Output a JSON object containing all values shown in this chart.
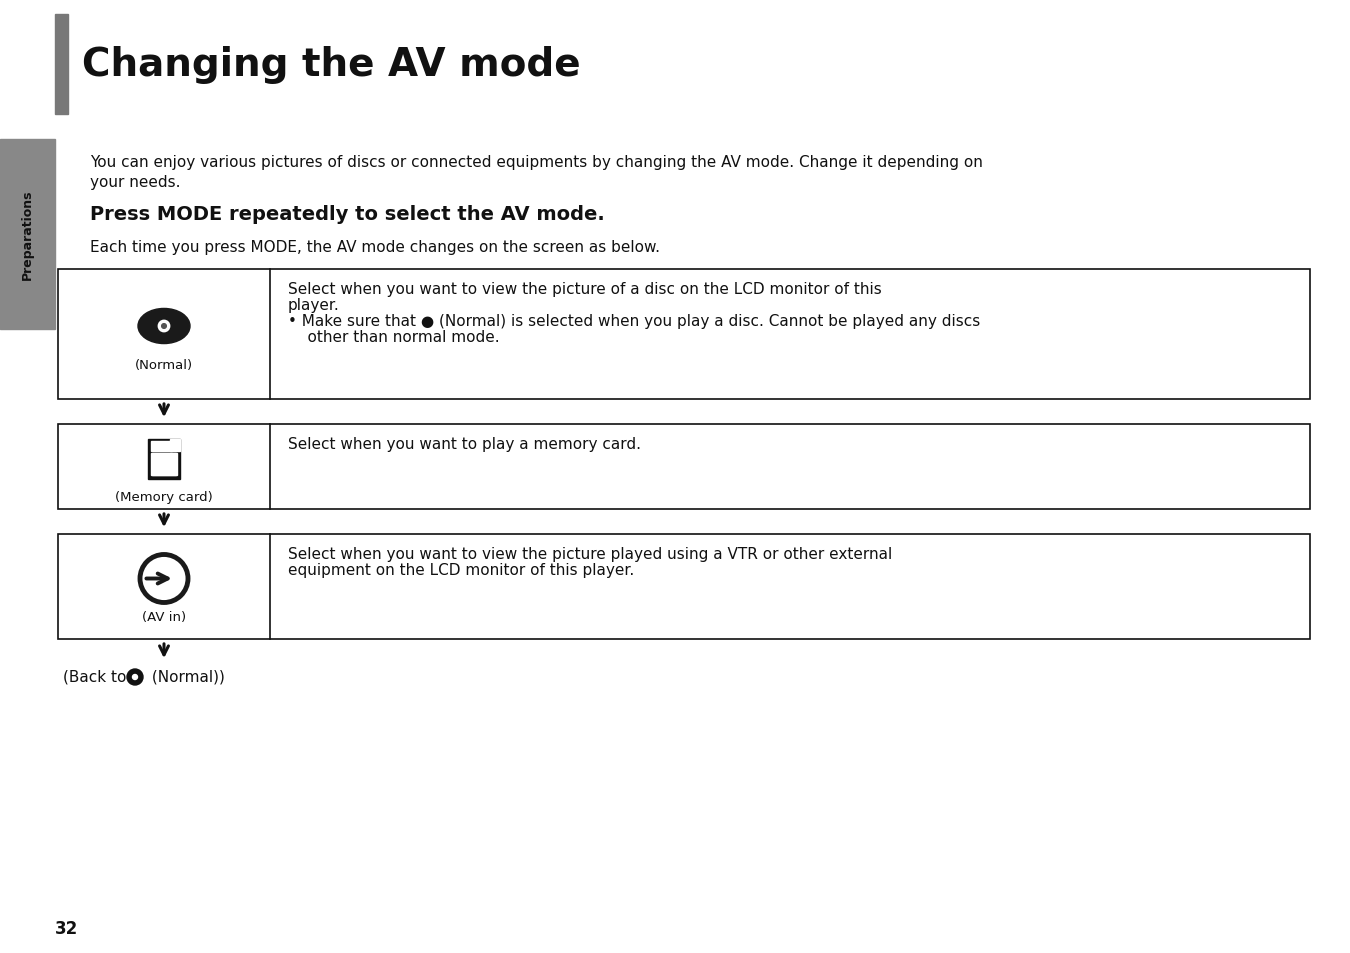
{
  "title": "Changing the AV mode",
  "background_color": "#ffffff",
  "header_bar_color": "#787878",
  "side_bar_color": "#888888",
  "preparations_label": "Preparations",
  "page_number": "32",
  "intro_text_1": "You can enjoy various pictures of discs or connected equipments by changing the AV mode. Change it depending on",
  "intro_text_2": "your needs.",
  "bold_instruction": "Press MODE repeatedly to select the AV mode.",
  "each_time_text": "Each time you press MODE, the AV mode changes on the screen as below.",
  "rows": [
    {
      "icon_type": "disc",
      "label": "(Normal)",
      "text_lines": [
        "Select when you want to view the picture of a disc on the LCD monitor of this",
        "player.",
        "• Make sure that ● (Normal) is selected when you play a disc. Cannot be played any discs",
        "    other than normal mode."
      ]
    },
    {
      "icon_type": "memory_card",
      "label": "(Memory card)",
      "text_lines": [
        "Select when you want to play a memory card."
      ]
    },
    {
      "icon_type": "av_in",
      "label": "(AV in)",
      "text_lines": [
        "Select when you want to view the picture played using a VTR or other external",
        "equipment on the LCD monitor of this player."
      ]
    }
  ],
  "back_to_text": "(Back to ● (Normal))",
  "box_border_color": "#111111",
  "box_bg_color": "#ffffff",
  "arrow_color": "#111111",
  "title_fontsize": 28,
  "text_fontsize": 11,
  "label_fontsize": 9.5,
  "bold_instruction_fontsize": 14,
  "each_time_fontsize": 11
}
